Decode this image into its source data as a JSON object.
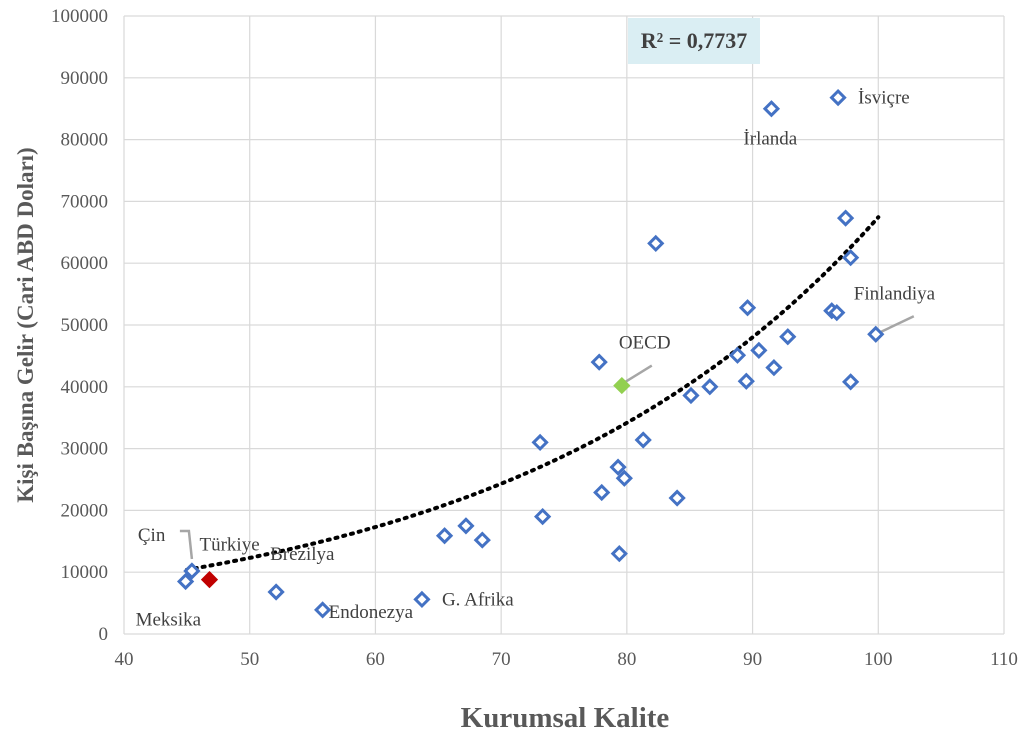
{
  "chart_data": {
    "type": "scatter",
    "xlabel": "Kurumsal Kalite",
    "ylabel": "Kişi Başına Gelir (Cari ABD Doları)",
    "xlim": [
      40,
      110
    ],
    "ylim": [
      0,
      100000
    ],
    "x_ticks": [
      40,
      50,
      60,
      70,
      80,
      90,
      100,
      110
    ],
    "y_ticks": [
      0,
      10000,
      20000,
      30000,
      40000,
      50000,
      60000,
      70000,
      80000,
      90000,
      100000
    ],
    "grid": true,
    "r_squared_label": "R² = 0,7737",
    "trendline": {
      "type": "exponential",
      "style": "dotted",
      "color": "#000000",
      "x_range": [
        45,
        100
      ],
      "a": 2250.7,
      "b": 0.034
    },
    "colors": {
      "default_marker": "#4472C4",
      "turkey": "#C00000",
      "oecd": "#92D050",
      "grid": "#D9D9D9",
      "r2_box": "#DAEEF3"
    },
    "points": [
      {
        "x": 44.9,
        "y": 8500,
        "label": "Meksika"
      },
      {
        "x": 45.4,
        "y": 10200,
        "label": "Çin"
      },
      {
        "x": 46.8,
        "y": 8800,
        "label": "Türkiye",
        "highlight": "turkey",
        "marker": "filled"
      },
      {
        "x": 52.1,
        "y": 6800,
        "label": "Brezilya"
      },
      {
        "x": 55.8,
        "y": 3900,
        "label": "Endonezya"
      },
      {
        "x": 63.7,
        "y": 5600,
        "label": "G. Afrika"
      },
      {
        "x": 65.5,
        "y": 15900
      },
      {
        "x": 67.2,
        "y": 17500
      },
      {
        "x": 68.5,
        "y": 15200
      },
      {
        "x": 73.1,
        "y": 31000
      },
      {
        "x": 73.3,
        "y": 19000
      },
      {
        "x": 77.8,
        "y": 44000
      },
      {
        "x": 78.0,
        "y": 22900
      },
      {
        "x": 79.3,
        "y": 27000
      },
      {
        "x": 79.4,
        "y": 13000
      },
      {
        "x": 79.8,
        "y": 25200
      },
      {
        "x": 79.6,
        "y": 40200,
        "label": "OECD",
        "highlight": "oecd",
        "marker": "filled"
      },
      {
        "x": 81.3,
        "y": 31400
      },
      {
        "x": 82.3,
        "y": 63200
      },
      {
        "x": 84.0,
        "y": 22000
      },
      {
        "x": 85.1,
        "y": 38600
      },
      {
        "x": 86.6,
        "y": 40000
      },
      {
        "x": 88.8,
        "y": 45100
      },
      {
        "x": 89.5,
        "y": 40900
      },
      {
        "x": 89.6,
        "y": 52800
      },
      {
        "x": 90.5,
        "y": 45900
      },
      {
        "x": 91.5,
        "y": 85000,
        "label": "İrlanda"
      },
      {
        "x": 91.7,
        "y": 43100
      },
      {
        "x": 92.8,
        "y": 48100
      },
      {
        "x": 96.3,
        "y": 52300
      },
      {
        "x": 96.7,
        "y": 52000
      },
      {
        "x": 96.8,
        "y": 86800,
        "label": "İsviçre"
      },
      {
        "x": 97.4,
        "y": 67300
      },
      {
        "x": 97.8,
        "y": 60900
      },
      {
        "x": 97.8,
        "y": 40800
      },
      {
        "x": 99.8,
        "y": 48500,
        "label": "Finlandiya"
      }
    ]
  }
}
